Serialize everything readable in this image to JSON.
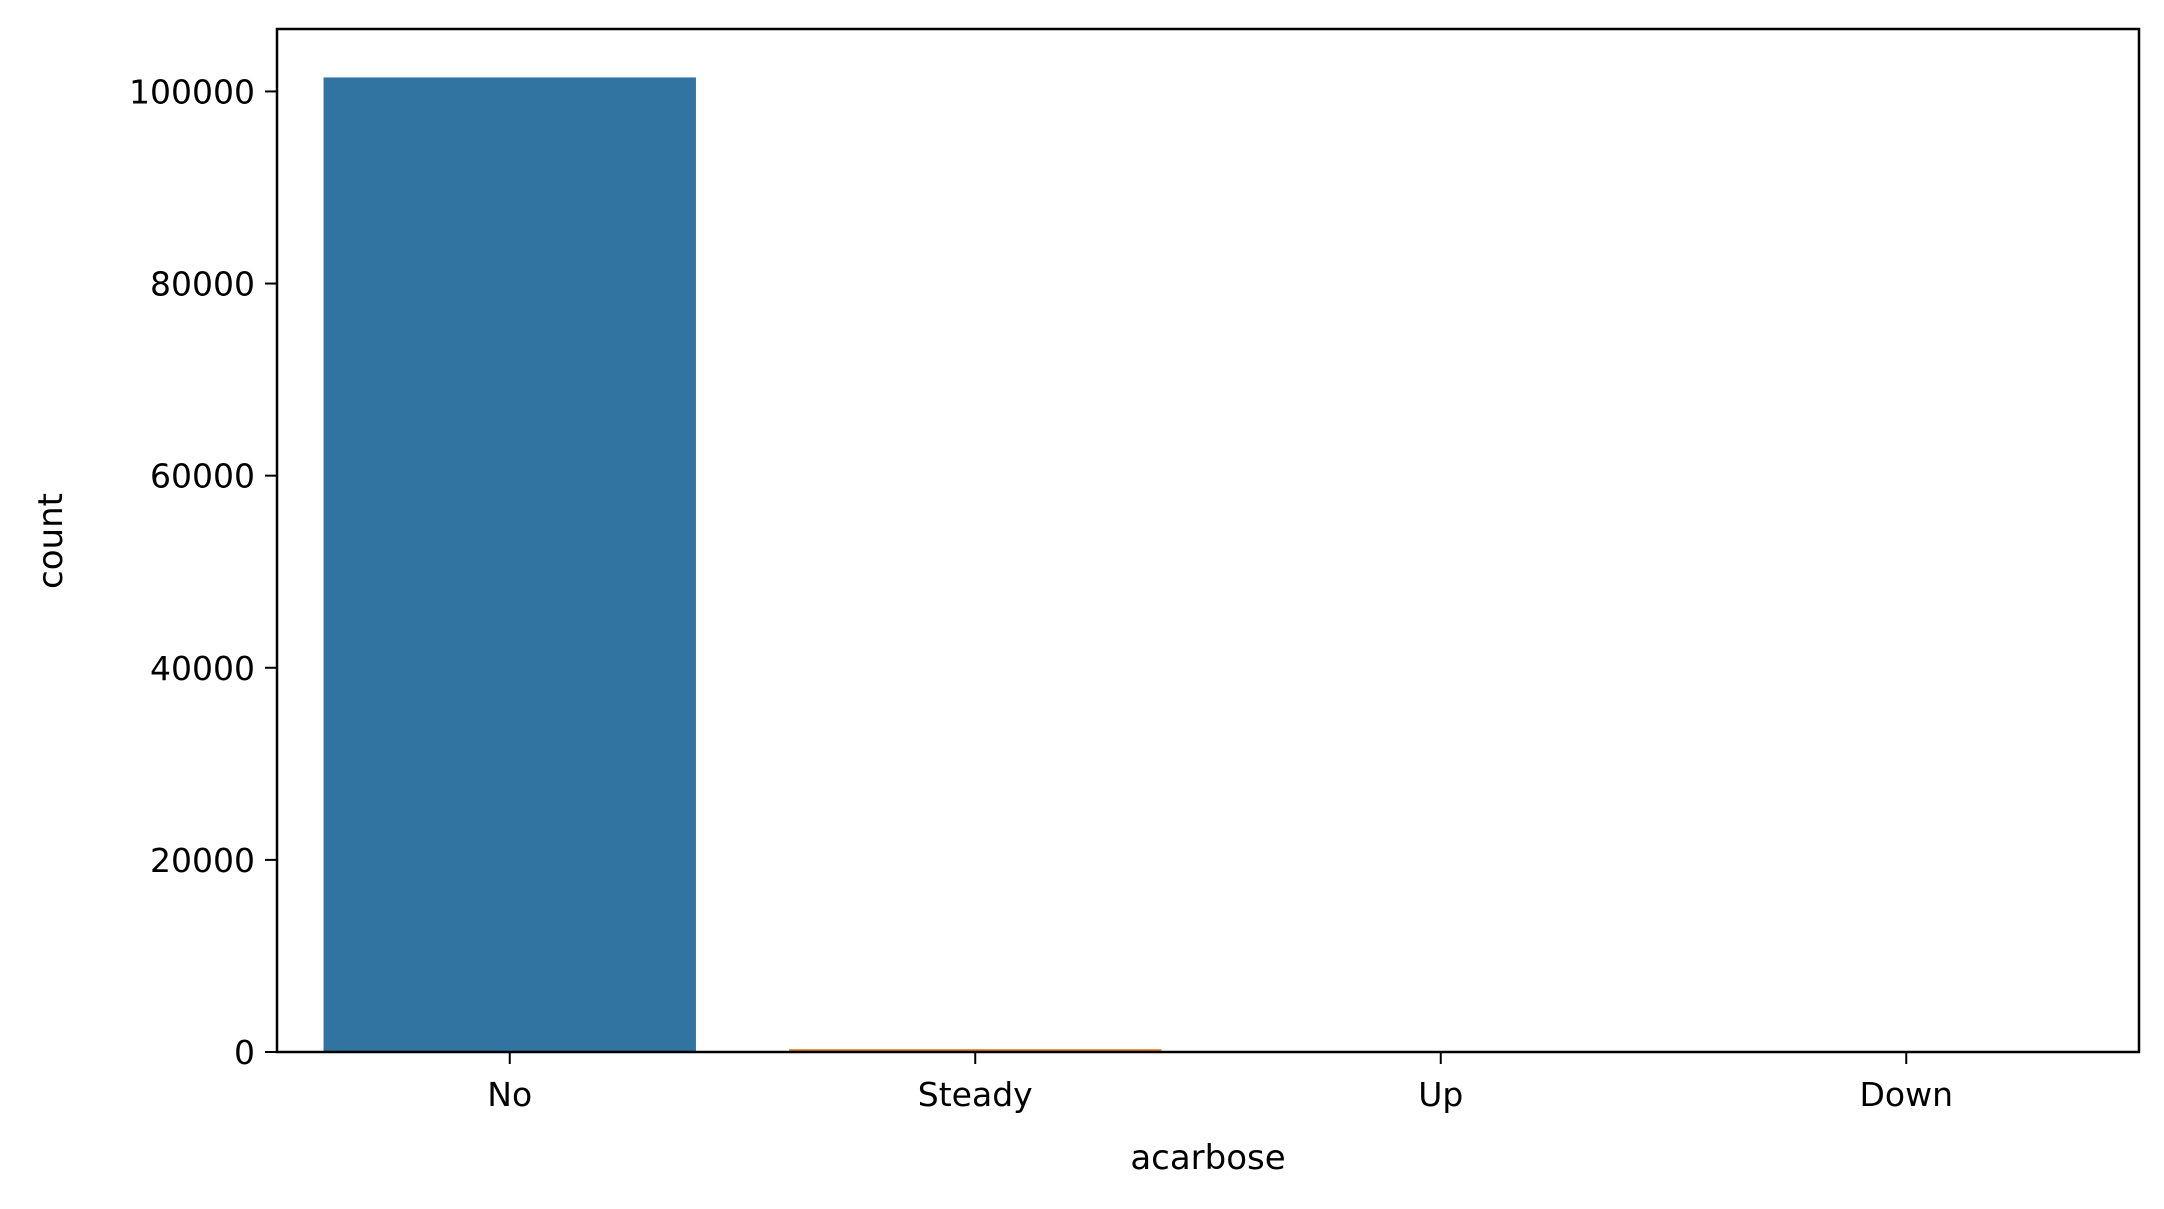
{
  "chart_data": {
    "type": "bar",
    "title": "",
    "xlabel": "acarbose",
    "ylabel": "count",
    "categories": [
      "No",
      "Steady",
      "Up",
      "Down"
    ],
    "values": [
      101458,
      295,
      10,
      3
    ],
    "colors": [
      "#3274a1",
      "#e1812c",
      "#3a923a",
      "#c03d3e"
    ],
    "ylim": [
      0,
      106500
    ],
    "yticks": [
      0,
      20000,
      40000,
      60000,
      80000,
      100000
    ],
    "ytick_labels": [
      "0",
      "20000",
      "40000",
      "60000",
      "80000",
      "100000"
    ],
    "grid": false,
    "legend": "none"
  }
}
